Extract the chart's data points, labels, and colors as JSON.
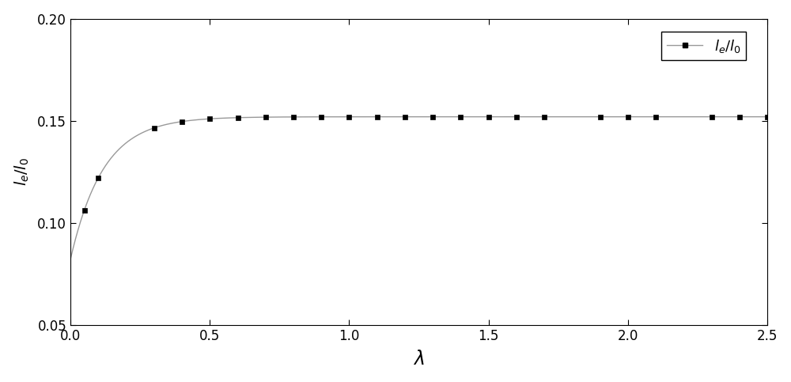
{
  "x_min": 0.0,
  "x_max": 2.5,
  "y_min": 0.05,
  "y_max": 0.2,
  "x_ticks": [
    0.0,
    0.5,
    1.0,
    1.5,
    2.0,
    2.5
  ],
  "y_ticks": [
    0.05,
    0.1,
    0.15,
    0.2
  ],
  "xlabel": "$\\lambda$",
  "ylabel": "$l_e/l_0$",
  "legend_label": "$l_e/l_0$",
  "marker_x": [
    0.05,
    0.1,
    0.3,
    0.4,
    0.5,
    0.6,
    0.7,
    0.8,
    0.9,
    1.0,
    1.1,
    1.2,
    1.3,
    1.4,
    1.5,
    1.6,
    1.7,
    1.9,
    2.0,
    2.1,
    2.3,
    2.4,
    2.5
  ],
  "curve_color": "#999999",
  "marker_color": "#000000",
  "line_width": 1.0,
  "marker_size": 5,
  "background_color": "#ffffff",
  "a": 0.0698,
  "b": 8.5,
  "c": 0.0822
}
